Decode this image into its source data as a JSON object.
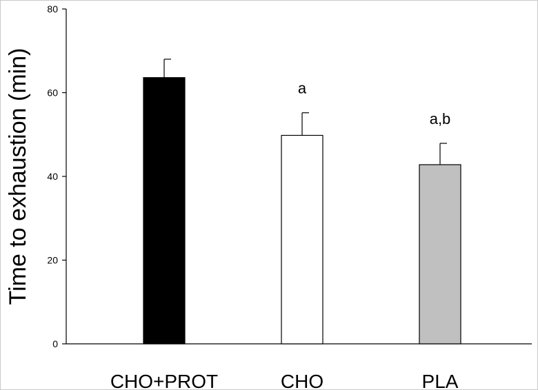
{
  "chart_data": {
    "type": "bar",
    "title": "",
    "xlabel": "",
    "ylabel": "Time to exhaustion (min)",
    "ylim": [
      0,
      80
    ],
    "yticks": [
      0,
      20,
      40,
      60,
      80
    ],
    "grid": false,
    "categories": [
      "CHO+PROT",
      "CHO",
      "PLA"
    ],
    "values": [
      63.6,
      49.8,
      42.8
    ],
    "errors": [
      4.4,
      5.4,
      5.1
    ],
    "colors": [
      "#000000",
      "#ffffff",
      "#c0c0c0"
    ],
    "annotations": [
      "",
      "a",
      "a,b"
    ]
  }
}
